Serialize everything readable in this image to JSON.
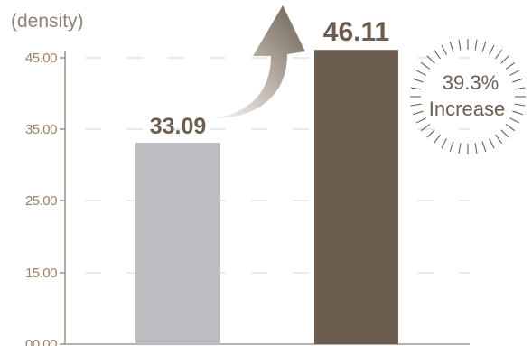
{
  "chart_data": {
    "type": "bar",
    "ylabel": "(density)",
    "ylim": [
      0,
      45
    ],
    "yticks": [
      "00.00",
      "15.00",
      "25.00",
      "35.00",
      "45.00"
    ],
    "categories": [
      "",
      ""
    ],
    "values": [
      33.09,
      46.11
    ],
    "data_labels": [
      "33.09",
      "46.11"
    ],
    "colors": [
      "#bcbdc0",
      "#6b5e50"
    ],
    "grid": true,
    "annotation": {
      "percent": "39.3%",
      "text": "Increase"
    }
  }
}
